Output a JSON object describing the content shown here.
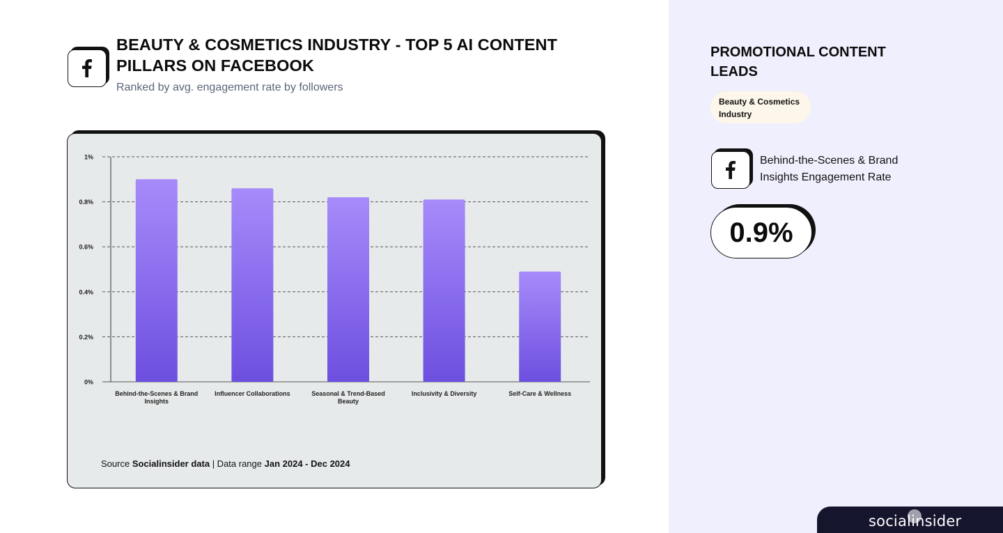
{
  "header": {
    "icon": "facebook-icon",
    "title": "BEAUTY & COSMETICS INDUSTRY - TOP 5 AI CONTENT PILLARS ON FACEBOOK",
    "subtitle": "Ranked by avg. engagement rate by followers"
  },
  "chart_data": {
    "type": "bar",
    "categories": [
      [
        "Behind-the-Scenes & Brand",
        "Insights"
      ],
      [
        "Influencer Collaborations"
      ],
      [
        "Seasonal & Trend-Based",
        "Beauty"
      ],
      [
        "Inclusivity & Diversity"
      ],
      [
        "Self-Care & Wellness"
      ]
    ],
    "values": [
      0.9,
      0.86,
      0.82,
      0.81,
      0.49
    ],
    "ylim": [
      0,
      1
    ],
    "yticks": [
      0,
      0.2,
      0.4,
      0.6,
      0.8,
      1
    ],
    "ytick_labels": [
      "0%",
      "0.2%",
      "0.4%",
      "0.6%",
      "0.8%",
      "1%"
    ],
    "grid": true,
    "legend": "none",
    "colors": {
      "bar_top": "#a78bfa",
      "bar_bottom": "#6d4fe0",
      "grid": "#555555",
      "card_bg": "#e7eaea"
    }
  },
  "source": {
    "prefix": "Source ",
    "name": "Socialinsider data",
    "separator": " | Data range ",
    "range": "Jan 2024 - Dec 2024"
  },
  "panel": {
    "heading": "PROMOTIONAL CONTENT LEADS",
    "badge": "Beauty & Cosmetics Industry",
    "icon": "facebook-icon",
    "metric_label": "Behind-the-Scenes & Brand Insights Engagement Rate",
    "metric_value": "0.9%",
    "colors": {
      "panel_bg": "#f0effd",
      "badge_bg": "#fdf6ea"
    }
  },
  "brand": {
    "name": "socialinsider",
    "bar_color": "#15152e"
  }
}
